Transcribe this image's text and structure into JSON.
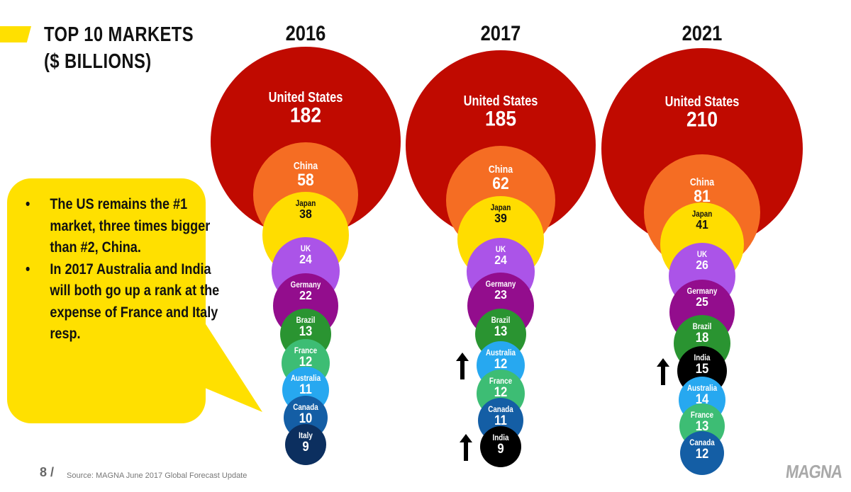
{
  "header": {
    "title_line1": "TOP 10 MARKETS",
    "title_line2": "($ BILLIONS)"
  },
  "callout": {
    "bullet_glyph": "•",
    "items": [
      "The US remains the #1 market, three times bigger than #2, China.",
      "In 2017 Australia and India will both go up a rank at the expense of France and Italy resp."
    ]
  },
  "footer": {
    "page": "8 /",
    "source": "Source: MAGNA June 2017 Global Forecast Update",
    "logo": "MAGNA"
  },
  "colors": {
    "accent_yellow": "#ffe000",
    "United States": "#c00a00",
    "China": "#f56d23",
    "Japan": "#ffdd00",
    "UK": "#ab54e8",
    "Germany": "#930d8d",
    "Brazil": "#2a9431",
    "France": "#3dbd74",
    "Australia": "#27a8f0",
    "Canada": "#145ea5",
    "Italy": "#0c2f5f",
    "India": "#000000",
    "arrow": "#000000"
  },
  "chart_data": {
    "type": "bubble",
    "title": "TOP 10 MARKETS ($ BILLIONS)",
    "unit": "$ billions",
    "legend": "none",
    "panels": [
      {
        "year": "2016",
        "markets": [
          {
            "rank": 1,
            "name": "United States",
            "value": 182
          },
          {
            "rank": 2,
            "name": "China",
            "value": 58
          },
          {
            "rank": 3,
            "name": "Japan",
            "value": 38
          },
          {
            "rank": 4,
            "name": "UK",
            "value": 24
          },
          {
            "rank": 5,
            "name": "Germany",
            "value": 22
          },
          {
            "rank": 6,
            "name": "Brazil",
            "value": 13
          },
          {
            "rank": 7,
            "name": "France",
            "value": 12
          },
          {
            "rank": 8,
            "name": "Australia",
            "value": 11
          },
          {
            "rank": 9,
            "name": "Canada",
            "value": 10
          },
          {
            "rank": 10,
            "name": "Italy",
            "value": 9
          }
        ],
        "rank_up_arrows": []
      },
      {
        "year": "2017",
        "markets": [
          {
            "rank": 1,
            "name": "United States",
            "value": 185
          },
          {
            "rank": 2,
            "name": "China",
            "value": 62
          },
          {
            "rank": 3,
            "name": "Japan",
            "value": 39
          },
          {
            "rank": 4,
            "name": "UK",
            "value": 24
          },
          {
            "rank": 5,
            "name": "Germany",
            "value": 23
          },
          {
            "rank": 6,
            "name": "Brazil",
            "value": 13
          },
          {
            "rank": 7,
            "name": "Australia",
            "value": 12
          },
          {
            "rank": 8,
            "name": "France",
            "value": 12
          },
          {
            "rank": 9,
            "name": "Canada",
            "value": 11
          },
          {
            "rank": 10,
            "name": "India",
            "value": 9
          }
        ],
        "rank_up_arrows": [
          "Australia",
          "India"
        ]
      },
      {
        "year": "2021",
        "markets": [
          {
            "rank": 1,
            "name": "United States",
            "value": 210
          },
          {
            "rank": 2,
            "name": "China",
            "value": 81
          },
          {
            "rank": 3,
            "name": "Japan",
            "value": 41
          },
          {
            "rank": 4,
            "name": "UK",
            "value": 26
          },
          {
            "rank": 5,
            "name": "Germany",
            "value": 25
          },
          {
            "rank": 6,
            "name": "Brazil",
            "value": 18
          },
          {
            "rank": 7,
            "name": "India",
            "value": 15
          },
          {
            "rank": 8,
            "name": "Australia",
            "value": 14
          },
          {
            "rank": 9,
            "name": "France",
            "value": 13
          },
          {
            "rank": 10,
            "name": "Canada",
            "value": 12
          }
        ],
        "rank_up_arrows": [
          "India"
        ]
      }
    ]
  }
}
